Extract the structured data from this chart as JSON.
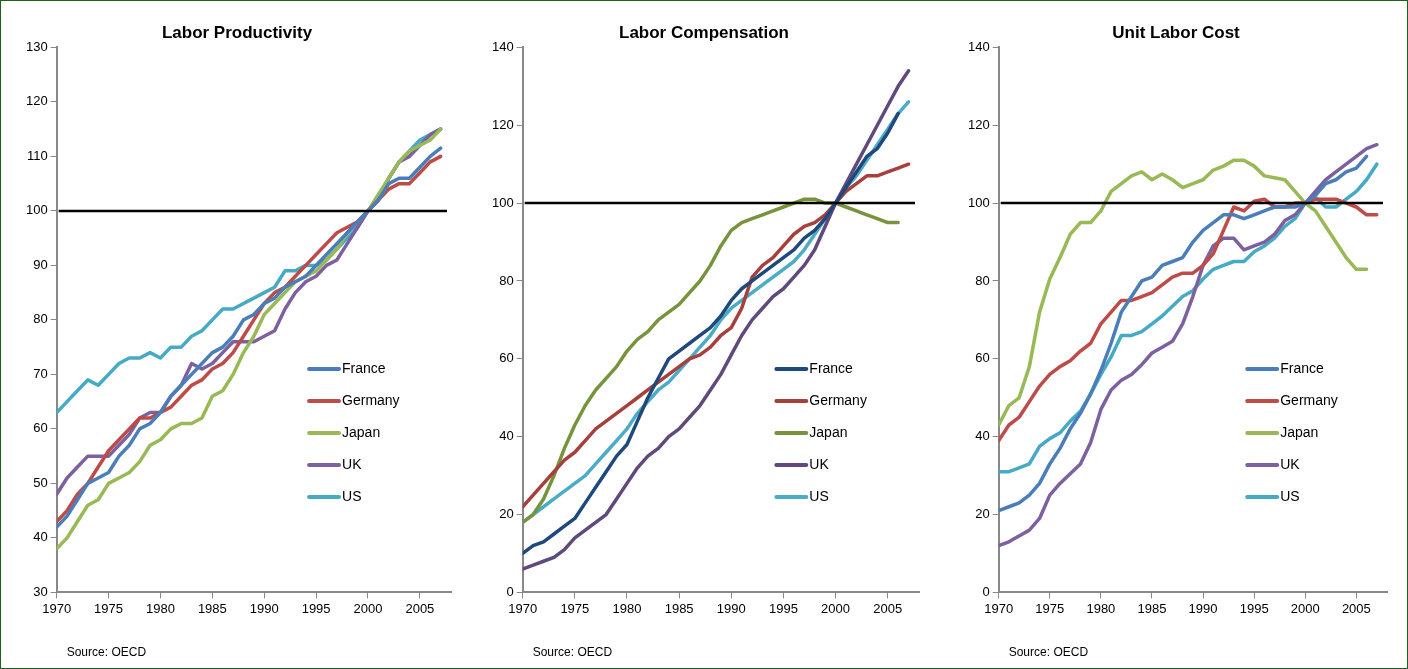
{
  "chart_data": [
    {
      "type": "line",
      "title": "Labor Productivity",
      "x": [
        1970,
        1971,
        1972,
        1973,
        1974,
        1975,
        1976,
        1977,
        1978,
        1979,
        1980,
        1981,
        1982,
        1983,
        1984,
        1985,
        1986,
        1987,
        1988,
        1989,
        1990,
        1991,
        1992,
        1993,
        1994,
        1995,
        1996,
        1997,
        1998,
        1999,
        2000,
        2001,
        2002,
        2003,
        2004,
        2005,
        2006,
        2007
      ],
      "xlim": [
        1970,
        2008
      ],
      "xticks": [
        1970,
        1975,
        1980,
        1985,
        1990,
        1995,
        2000,
        2005
      ],
      "ylim": [
        30,
        130
      ],
      "yticks": [
        30,
        40,
        50,
        60,
        70,
        80,
        90,
        100,
        110,
        120,
        130
      ],
      "grid": false,
      "legend": "right",
      "line_style": "solid",
      "marker": "none",
      "ref_lines": [
        {
          "axis": "y",
          "value": 100,
          "color": "#000000"
        }
      ],
      "annotations": [
        "Source: OECD"
      ],
      "series": [
        {
          "name": "France",
          "color": "#4a7ebb",
          "values": [
            42,
            44,
            47,
            50,
            51,
            52,
            55,
            57,
            60,
            61,
            63,
            66,
            68,
            70,
            72,
            74,
            75,
            77,
            80,
            81,
            83,
            84,
            86,
            87,
            88,
            90,
            92,
            94,
            96,
            98,
            100,
            102,
            105,
            106,
            106,
            108,
            110,
            111.5
          ]
        },
        {
          "name": "Germany",
          "color": "#be4b48",
          "values": [
            43,
            45,
            48,
            50,
            53,
            56,
            58,
            60,
            62,
            62,
            63,
            64,
            66,
            68,
            69,
            71,
            72,
            74,
            77,
            80,
            83,
            85,
            86,
            88,
            90,
            92,
            94,
            96,
            97,
            98,
            100,
            102,
            104,
            105,
            105,
            107,
            109,
            110
          ]
        },
        {
          "name": "Japan",
          "color": "#98b954",
          "values": [
            38,
            40,
            43,
            46,
            47,
            50,
            51,
            52,
            54,
            57,
            58,
            60,
            61,
            61,
            62,
            66,
            67,
            70,
            74,
            77,
            81,
            83,
            85,
            87,
            88,
            89,
            91,
            93,
            96,
            98,
            100,
            103,
            106,
            109,
            111,
            112,
            113,
            115
          ]
        },
        {
          "name": "UK",
          "color": "#7d60a0",
          "values": [
            48,
            51,
            53,
            55,
            55,
            55,
            57,
            59,
            62,
            63,
            63,
            66,
            68,
            72,
            71,
            72,
            74,
            76,
            76,
            76,
            77,
            78,
            82,
            85,
            87,
            88,
            90,
            91,
            94,
            97,
            100,
            102,
            106,
            109,
            110,
            112,
            114,
            115
          ]
        },
        {
          "name": "US",
          "color": "#46aac5",
          "values": [
            63,
            65,
            67,
            69,
            68,
            70,
            72,
            73,
            73,
            74,
            73,
            75,
            75,
            77,
            78,
            80,
            82,
            82,
            83,
            84,
            85,
            86,
            89,
            89,
            90,
            90,
            91,
            93,
            95,
            97,
            100,
            102,
            106,
            109,
            111,
            113,
            114,
            115
          ]
        }
      ]
    },
    {
      "type": "line",
      "title": "Labor Compensation",
      "x": [
        1970,
        1971,
        1972,
        1973,
        1974,
        1975,
        1976,
        1977,
        1978,
        1979,
        1980,
        1981,
        1982,
        1983,
        1984,
        1985,
        1986,
        1987,
        1988,
        1989,
        1990,
        1991,
        1992,
        1993,
        1994,
        1995,
        1996,
        1997,
        1998,
        1999,
        2000,
        2001,
        2002,
        2003,
        2004,
        2005,
        2006,
        2007
      ],
      "xlim": [
        1970,
        2008
      ],
      "xticks": [
        1970,
        1975,
        1980,
        1985,
        1990,
        1995,
        2000,
        2005
      ],
      "ylim": [
        0,
        140
      ],
      "yticks": [
        0,
        20,
        40,
        60,
        80,
        100,
        120,
        140
      ],
      "grid": false,
      "legend": "right",
      "line_style": "solid",
      "marker": "none",
      "ref_lines": [
        {
          "axis": "y",
          "value": 100,
          "color": "#000000"
        }
      ],
      "annotations": [
        "Source: OECD"
      ],
      "series": [
        {
          "name": "France",
          "color": "#1f497d",
          "values": [
            10,
            12,
            13,
            15,
            17,
            19,
            23,
            27,
            31,
            35,
            38,
            44,
            50,
            55,
            60,
            62,
            64,
            66,
            68,
            71,
            75,
            78,
            80,
            82,
            84,
            86,
            88,
            91,
            93,
            96,
            100,
            104,
            108,
            112,
            114,
            118,
            123,
            null
          ]
        },
        {
          "name": "Germany",
          "color": "#a5403c",
          "values": [
            22,
            25,
            28,
            31,
            34,
            36,
            39,
            42,
            44,
            46,
            48,
            50,
            52,
            54,
            56,
            58,
            60,
            61,
            63,
            66,
            68,
            73,
            81,
            84,
            86,
            89,
            92,
            94,
            95,
            97,
            100,
            103,
            105,
            107,
            107,
            108,
            109,
            110
          ]
        },
        {
          "name": "Japan",
          "color": "#77933c",
          "values": [
            18,
            20,
            24,
            30,
            37,
            43,
            48,
            52,
            55,
            58,
            62,
            65,
            67,
            70,
            72,
            74,
            77,
            80,
            84,
            89,
            93,
            95,
            96,
            97,
            98,
            99,
            100,
            101,
            101,
            100,
            100,
            99,
            98,
            97,
            96,
            95,
            95,
            null
          ]
        },
        {
          "name": "UK",
          "color": "#604a7b",
          "values": [
            6,
            7,
            8,
            9,
            11,
            14,
            16,
            18,
            20,
            24,
            28,
            32,
            35,
            37,
            40,
            42,
            45,
            48,
            52,
            56,
            61,
            66,
            70,
            73,
            76,
            78,
            81,
            84,
            88,
            94,
            100,
            105,
            110,
            115,
            120,
            125,
            130,
            134
          ]
        },
        {
          "name": "US",
          "color": "#4bacc6",
          "values": [
            18,
            20,
            22,
            24,
            26,
            28,
            30,
            33,
            36,
            39,
            42,
            46,
            49,
            52,
            54,
            57,
            60,
            63,
            66,
            70,
            73,
            75,
            77,
            79,
            81,
            83,
            85,
            88,
            92,
            96,
            100,
            104,
            107,
            111,
            115,
            119,
            123,
            126
          ]
        }
      ]
    },
    {
      "type": "line",
      "title": "Unit Labor Cost",
      "x": [
        1970,
        1971,
        1972,
        1973,
        1974,
        1975,
        1976,
        1977,
        1978,
        1979,
        1980,
        1981,
        1982,
        1983,
        1984,
        1985,
        1986,
        1987,
        1988,
        1989,
        1990,
        1991,
        1992,
        1993,
        1994,
        1995,
        1996,
        1997,
        1998,
        1999,
        2000,
        2001,
        2002,
        2003,
        2004,
        2005,
        2006,
        2007
      ],
      "xlim": [
        1970,
        2008
      ],
      "xticks": [
        1970,
        1975,
        1980,
        1985,
        1990,
        1995,
        2000,
        2005
      ],
      "ylim": [
        0,
        140
      ],
      "yticks": [
        0,
        20,
        40,
        60,
        80,
        100,
        120,
        140
      ],
      "grid": false,
      "legend": "right",
      "line_style": "solid",
      "marker": "none",
      "ref_lines": [
        {
          "axis": "y",
          "value": 100,
          "color": "#000000"
        }
      ],
      "annotations": [
        "Source: OECD"
      ],
      "series": [
        {
          "name": "France",
          "color": "#4a7ebb",
          "values": [
            21,
            22,
            23,
            25,
            28,
            33,
            37,
            42,
            46,
            51,
            57,
            64,
            72,
            76,
            80,
            81,
            84,
            85,
            86,
            90,
            93,
            95,
            97,
            97,
            96,
            97,
            98,
            99,
            99,
            99,
            100,
            102,
            105,
            106,
            108,
            109,
            112,
            null
          ]
        },
        {
          "name": "Germany",
          "color": "#be4b48",
          "values": [
            39,
            43,
            45,
            49,
            53,
            56,
            58,
            59.5,
            62,
            64,
            69,
            72,
            75,
            75,
            76,
            77,
            79,
            81,
            82,
            82,
            84,
            87,
            93,
            99,
            98,
            100.5,
            101,
            99,
            99,
            100,
            100,
            101,
            101,
            101,
            100,
            99,
            97,
            97
          ]
        },
        {
          "name": "Japan",
          "color": "#98b954",
          "values": [
            43,
            48,
            50,
            58,
            72,
            80.5,
            86,
            92,
            95,
            95,
            98,
            103,
            105,
            107,
            108,
            106,
            107.5,
            106,
            104,
            105,
            106,
            108.5,
            109.5,
            111,
            111,
            109.5,
            107,
            106.5,
            106,
            103,
            100,
            98,
            94,
            90,
            86,
            83,
            83,
            null
          ]
        },
        {
          "name": "UK",
          "color": "#7d60a0",
          "values": [
            12,
            13,
            14.5,
            16,
            19,
            25,
            28,
            30.5,
            33,
            38.5,
            47,
            52,
            54.5,
            56,
            58.5,
            61.5,
            63,
            64.5,
            69,
            76,
            84,
            89,
            91,
            91,
            88,
            89,
            90,
            92,
            95.5,
            97,
            100,
            103,
            106,
            108,
            110,
            112,
            114,
            115
          ]
        },
        {
          "name": "US",
          "color": "#46aac5",
          "values": [
            31,
            31,
            32,
            33,
            37.5,
            39.5,
            41,
            44,
            46.5,
            51,
            56,
            60.5,
            66,
            66,
            67,
            69,
            71,
            73.5,
            76,
            77.5,
            80.5,
            83,
            84,
            85,
            85,
            87.5,
            89,
            91,
            94,
            96,
            100,
            101.5,
            99,
            99,
            101,
            103,
            106,
            110
          ]
        }
      ]
    }
  ]
}
